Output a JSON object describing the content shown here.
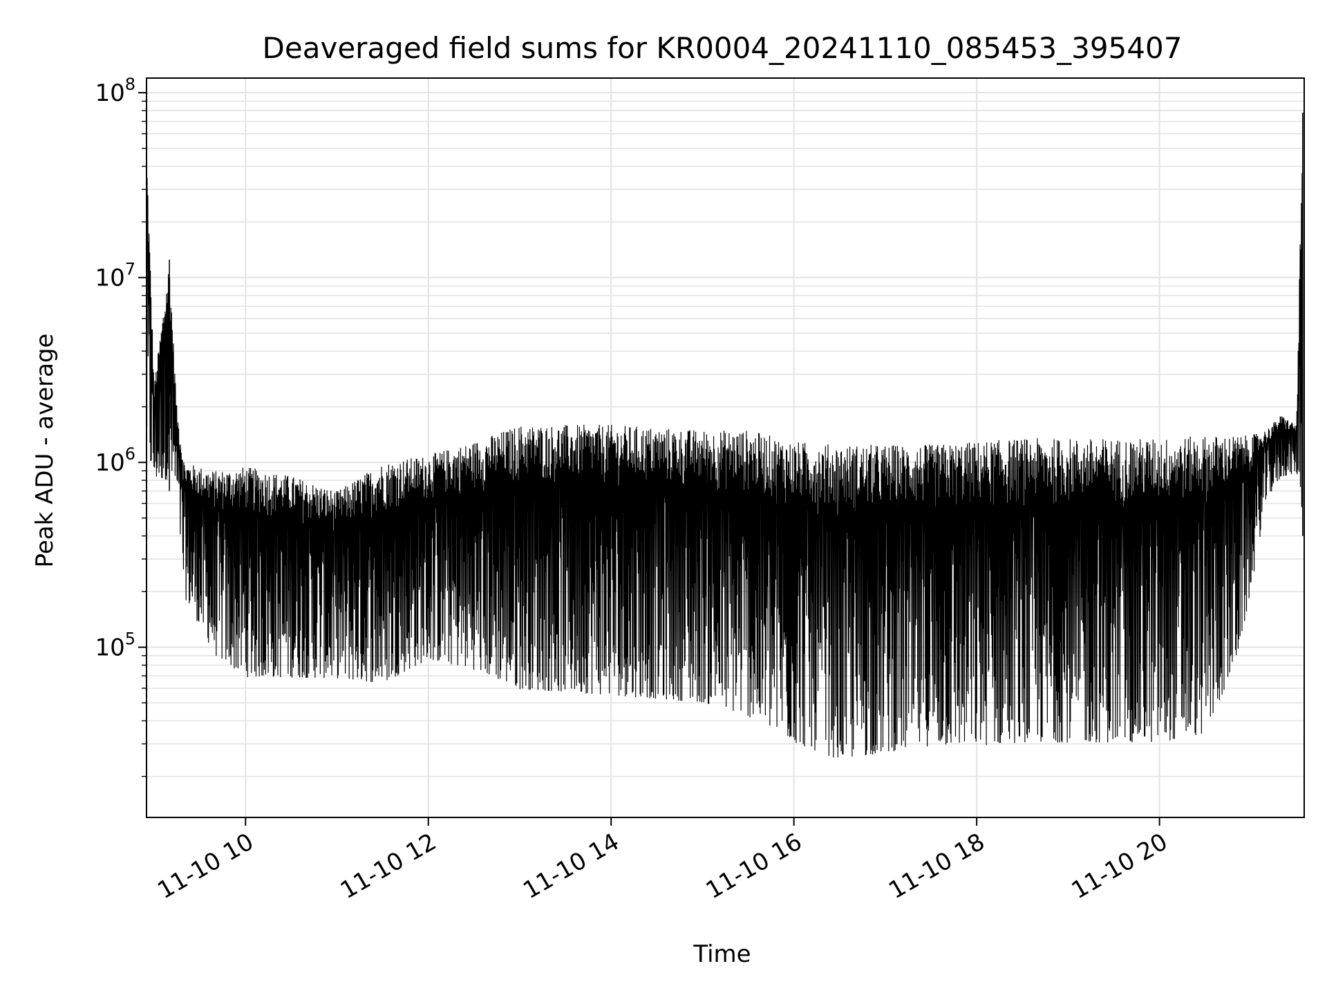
{
  "chart_data": {
    "type": "line",
    "title": "Deaveraged field sums for KR0004_20241110_085453_395407",
    "xlabel": "Time",
    "ylabel": "Peak ADU - average",
    "y_scale": "log",
    "grid": true,
    "line_color": "#000000",
    "grid_color": "#e3e3e3",
    "xlim": [
      "2024-11-10 08:55",
      "2024-11-10 21:35"
    ],
    "ylim": [
      12000,
      120000000
    ],
    "x_ticks": [
      {
        "value": "2024-11-10 10:00",
        "label": "11-10 10"
      },
      {
        "value": "2024-11-10 12:00",
        "label": "11-10 12"
      },
      {
        "value": "2024-11-10 14:00",
        "label": "11-10 14"
      },
      {
        "value": "2024-11-10 16:00",
        "label": "11-10 16"
      },
      {
        "value": "2024-11-10 18:00",
        "label": "11-10 18"
      },
      {
        "value": "2024-11-10 20:00",
        "label": "11-10 20"
      }
    ],
    "y_ticks": [
      {
        "value": 100000,
        "base": "10",
        "exp": "5"
      },
      {
        "value": 1000000,
        "base": "10",
        "exp": "6"
      },
      {
        "value": 10000000,
        "base": "10",
        "exp": "7"
      },
      {
        "value": 100000000,
        "base": "10",
        "exp": "8"
      }
    ],
    "envelope": [
      {
        "t": "08:55",
        "high": 55000000,
        "low": 900000
      },
      {
        "t": "09:00",
        "high": 2600000,
        "low": 750000
      },
      {
        "t": "09:10",
        "high": 12500000,
        "low": 700000
      },
      {
        "t": "09:15",
        "high": 1900000,
        "low": 600000
      },
      {
        "t": "09:20",
        "high": 1000000,
        "low": 170000
      },
      {
        "t": "09:40",
        "high": 900000,
        "low": 80000
      },
      {
        "t": "10:00",
        "high": 950000,
        "low": 60000
      },
      {
        "t": "10:30",
        "high": 850000,
        "low": 60000
      },
      {
        "t": "11:00",
        "high": 700000,
        "low": 60000
      },
      {
        "t": "11:30",
        "high": 1000000,
        "low": 55000
      },
      {
        "t": "12:00",
        "high": 1100000,
        "low": 75000
      },
      {
        "t": "12:30",
        "high": 1300000,
        "low": 65000
      },
      {
        "t": "13:00",
        "high": 1600000,
        "low": 50000
      },
      {
        "t": "13:30",
        "high": 1600000,
        "low": 48000
      },
      {
        "t": "14:00",
        "high": 1600000,
        "low": 46000
      },
      {
        "t": "14:30",
        "high": 1550000,
        "low": 44000
      },
      {
        "t": "15:00",
        "high": 1500000,
        "low": 42000
      },
      {
        "t": "15:30",
        "high": 1500000,
        "low": 35000
      },
      {
        "t": "16:00",
        "high": 1300000,
        "low": 25000
      },
      {
        "t": "16:30",
        "high": 1250000,
        "low": 20000
      },
      {
        "t": "17:00",
        "high": 1250000,
        "low": 22000
      },
      {
        "t": "17:30",
        "high": 1250000,
        "low": 24000
      },
      {
        "t": "18:00",
        "high": 1300000,
        "low": 24000
      },
      {
        "t": "18:30",
        "high": 1350000,
        "low": 25000
      },
      {
        "t": "19:00",
        "high": 1350000,
        "low": 25000
      },
      {
        "t": "19:30",
        "high": 1350000,
        "low": 25000
      },
      {
        "t": "20:00",
        "high": 1350000,
        "low": 25000
      },
      {
        "t": "20:30",
        "high": 1400000,
        "low": 28000
      },
      {
        "t": "20:50",
        "high": 1400000,
        "low": 70000
      },
      {
        "t": "21:00",
        "high": 1400000,
        "low": 180000
      },
      {
        "t": "21:10",
        "high": 1500000,
        "low": 600000
      },
      {
        "t": "21:20",
        "high": 1800000,
        "low": 800000
      },
      {
        "t": "21:30",
        "high": 1600000,
        "low": 850000
      },
      {
        "t": "21:34",
        "high": 78000000,
        "low": 400000
      }
    ]
  }
}
